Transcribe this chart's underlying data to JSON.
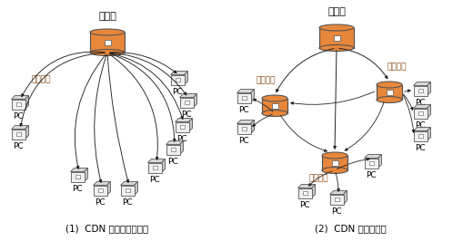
{
  "bg_color": "#ffffff",
  "server_color": "#E8873A",
  "server_edge_color": "#555555",
  "pc_color": "#f0f0f0",
  "pc_edge_color": "#555555",
  "arrow_color": "#222222",
  "caption1": "(1)  CDN を使わない配信",
  "caption2": "(2)  CDN を使う配信",
  "server_label": "サーバ",
  "proxy_label": "プロキシ",
  "pc_label": "PC",
  "title_fontsize": 8,
  "label_fontsize": 6.5,
  "caption_fontsize": 7.5
}
